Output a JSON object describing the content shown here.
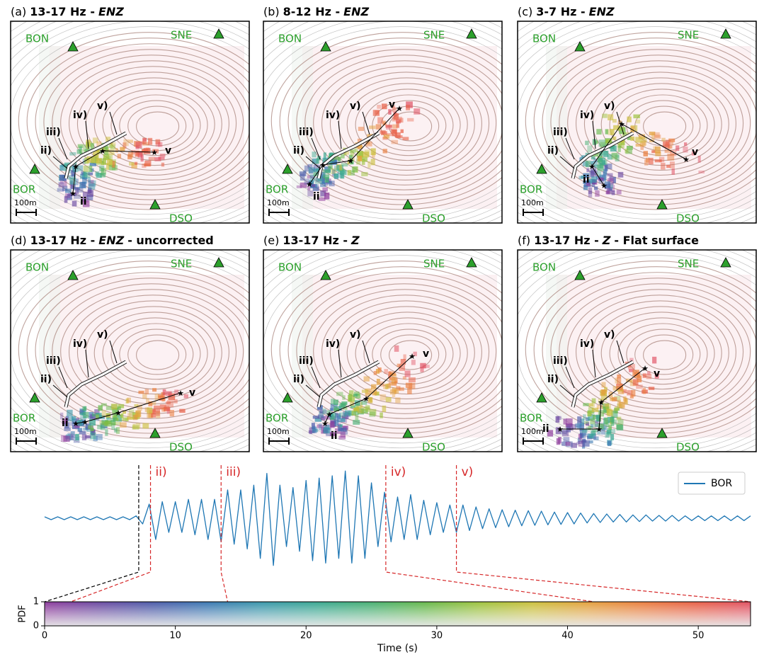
{
  "panels": [
    {
      "tag": "(a)",
      "band": "13-17 Hz -",
      "component": "ENZ"
    },
    {
      "tag": "(b)",
      "band": "8-12 Hz -",
      "component": "ENZ"
    },
    {
      "tag": "(c)",
      "band": "3-7 Hz -",
      "component": "ENZ"
    },
    {
      "tag": "(d)",
      "band": "13-17 Hz -",
      "component": "ENZ",
      "extra": "- uncorrected"
    },
    {
      "tag": "(e)",
      "band": "13-17 Hz -",
      "component": "Z"
    },
    {
      "tag": "(f)",
      "band": "13-17 Hz -",
      "component": "Z",
      "extra": "- Flat surface"
    }
  ],
  "stations": [
    "BON",
    "SNE",
    "BOR",
    "DSO"
  ],
  "station_color": "#2ca02c",
  "features": [
    "ii)",
    "iii)",
    "iv)",
    "v)"
  ],
  "path_labels": [
    "ii",
    "v"
  ],
  "scale_label": "100m",
  "chart_data": {
    "type": "line",
    "series": [
      {
        "name": "BOR",
        "color": "#1f77b4",
        "values": [
          0.03,
          -0.03,
          0.03,
          -0.03,
          0.03,
          -0.03,
          0.03,
          -0.03,
          0.03,
          -0.03,
          0.03,
          -0.03,
          0.03,
          -0.03,
          0.05,
          -0.12,
          0.3,
          -0.45,
          0.35,
          -0.3,
          0.35,
          -0.3,
          0.4,
          -0.35,
          0.4,
          -0.45,
          0.4,
          -0.5,
          0.6,
          -0.55,
          0.6,
          -0.65,
          0.7,
          -0.85,
          0.95,
          -1.0,
          0.7,
          -0.6,
          0.65,
          -0.7,
          0.8,
          -0.9,
          0.85,
          -0.95,
          0.9,
          -0.85,
          1.0,
          -0.95,
          0.9,
          -0.85,
          0.75,
          -0.6,
          0.55,
          -0.5,
          0.45,
          -0.45,
          0.5,
          -0.45,
          0.38,
          -0.35,
          0.33,
          -0.3,
          0.28,
          -0.3,
          0.28,
          -0.26,
          0.24,
          -0.22,
          0.2,
          -0.2,
          0.18,
          -0.18,
          0.17,
          -0.16,
          0.16,
          -0.15,
          0.15,
          -0.14,
          0.13,
          -0.13,
          0.12,
          -0.12,
          0.11,
          -0.1,
          0.1,
          -0.09,
          0.09,
          -0.08,
          0.08,
          -0.08,
          0.07,
          -0.07,
          0.07,
          -0.06,
          0.06,
          -0.06,
          0.06,
          -0.06,
          0.05,
          -0.05,
          0.05,
          -0.05,
          0.05,
          -0.05,
          0.05,
          -0.05,
          0.05,
          -0.05,
          0.05
        ]
      }
    ],
    "x": [
      0,
      0.5,
      1,
      1.5,
      2,
      2.5,
      3,
      3.5,
      4,
      4.5,
      5,
      5.5,
      6,
      6.5,
      7,
      7.5,
      8,
      8.5,
      9,
      9.5,
      10,
      10.5,
      11,
      11.5,
      12,
      12.5,
      13,
      13.5,
      14,
      14.5,
      15,
      15.5,
      16,
      16.5,
      17,
      17.5,
      18,
      18.5,
      19,
      19.5,
      20,
      20.5,
      21,
      21.5,
      22,
      22.5,
      23,
      23.5,
      24,
      24.5,
      25,
      25.5,
      26,
      26.5,
      27,
      27.5,
      28,
      28.5,
      29,
      29.5,
      30,
      30.5,
      31,
      31.5,
      32,
      32.5,
      33,
      33.5,
      34,
      34.5,
      35,
      35.5,
      36,
      36.5,
      37,
      37.5,
      38,
      38.5,
      39,
      39.5,
      40,
      40.5,
      41,
      41.5,
      42,
      42.5,
      43,
      43.5,
      44,
      44.5,
      45,
      45.5,
      46,
      46.5,
      47,
      47.5,
      48,
      48.5,
      49,
      49.5,
      50,
      50.5,
      51,
      51.5,
      52,
      52.5,
      53,
      53.5,
      54
    ],
    "xlim": [
      0,
      54
    ],
    "ylim": [
      -1.05,
      1.05
    ],
    "xticks": [
      0,
      10,
      20,
      30,
      40,
      50
    ],
    "xlabel": "Time (s)",
    "legend": "upper right",
    "markers": [
      {
        "x": 7.2,
        "to": 0,
        "color": "#000000"
      },
      {
        "x": 8.1,
        "to": 2,
        "label": "ii)",
        "color": "#d62728"
      },
      {
        "x": 13.5,
        "to": 14,
        "label": "iii)",
        "color": "#d62728"
      },
      {
        "x": 26.1,
        "to": 42,
        "label": "iv)",
        "color": "#d62728"
      },
      {
        "x": 31.5,
        "to": 54,
        "label": "v)",
        "color": "#d62728"
      }
    ],
    "colorbar": {
      "colors": [
        "#8e3c9c",
        "#6c4ba2",
        "#4d5ca9",
        "#3b78b2",
        "#3a97ab",
        "#3aa892",
        "#48b074",
        "#66b84c",
        "#9dc23e",
        "#cbbf3c",
        "#e3a13e",
        "#ea7f40",
        "#e86148",
        "#e05062"
      ],
      "ylim": [
        0,
        1
      ],
      "yticks": [
        0,
        1
      ],
      "ylabel": "PDF"
    }
  }
}
